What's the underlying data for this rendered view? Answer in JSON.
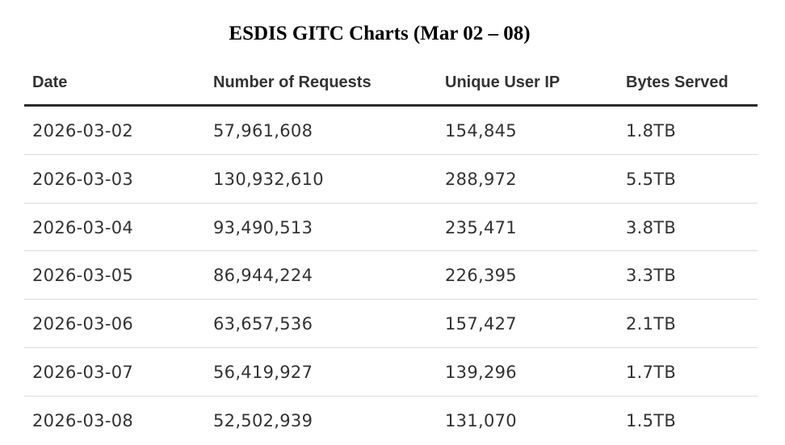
{
  "title": "ESDIS GITC Charts (Mar 02 – 08)",
  "table": {
    "headers": [
      "Date",
      "Number of Requests",
      "Unique User IP",
      "Bytes Served"
    ],
    "rows": [
      [
        "2026-03-02",
        "57,961,608",
        "154,845",
        "1.8TB"
      ],
      [
        "2026-03-03",
        "130,932,610",
        "288,972",
        "5.5TB"
      ],
      [
        "2026-03-04",
        "93,490,513",
        "235,471",
        "3.8TB"
      ],
      [
        "2026-03-05",
        "86,944,224",
        "226,395",
        "3.3TB"
      ],
      [
        "2026-03-06",
        "63,657,536",
        "157,427",
        "2.1TB"
      ],
      [
        "2026-03-07",
        "56,419,927",
        "139,296",
        "1.7TB"
      ],
      [
        "2026-03-08",
        "52,502,939",
        "131,070",
        "1.5TB"
      ]
    ]
  }
}
